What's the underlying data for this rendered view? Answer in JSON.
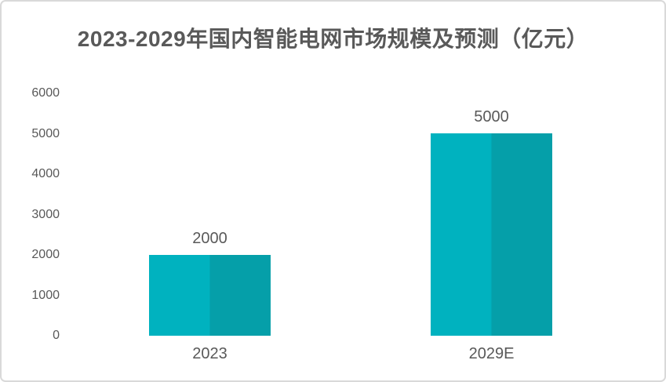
{
  "chart_data": {
    "type": "bar",
    "title": "2023-2029年国内智能电网市场规模及预测（亿元）",
    "categories": [
      "2023",
      "2029E"
    ],
    "values": [
      2000,
      5000
    ],
    "data_labels": [
      "2000",
      "5000"
    ],
    "xlabel": "",
    "ylabel": "",
    "ylim": [
      0,
      6000
    ],
    "ytick_step": 1000,
    "yticks": [
      0,
      1000,
      2000,
      3000,
      4000,
      5000,
      6000
    ],
    "grid": false,
    "legend_position": "none",
    "colors": {
      "bar_left_half": "#00b2bf",
      "bar_right_half": "#059fa9",
      "text": "#595959",
      "card_border": "#d9d9d9",
      "background": "#ffffff"
    }
  }
}
